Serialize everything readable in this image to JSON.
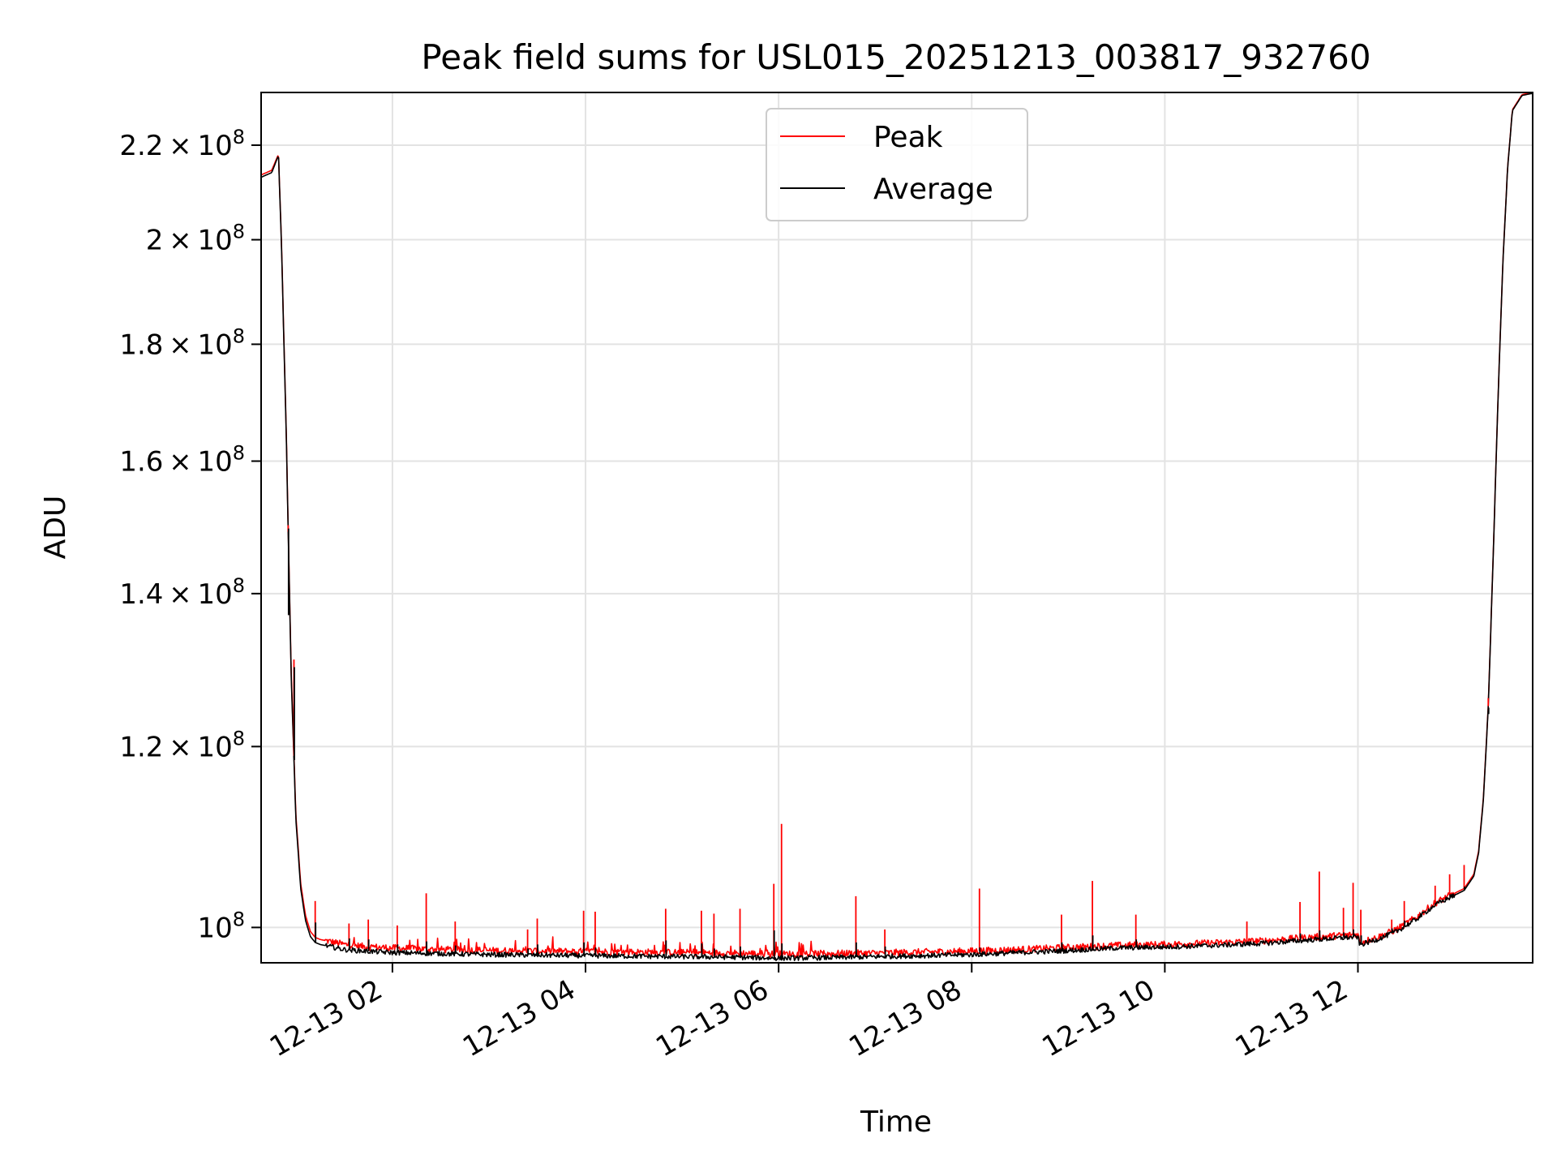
{
  "chart_data": {
    "type": "line",
    "title": "Peak field sums for USL015_20251213_003817_932760",
    "xlabel": "Time",
    "ylabel": "ADU",
    "y_scale": "log",
    "grid": true,
    "legend_position": "upper center",
    "x_unit": "hours since 2025-12-13 00:00",
    "xlim": [
      0.64,
      13.81
    ],
    "ylim": [
      96500000,
      232000000
    ],
    "x_ticks": [
      {
        "value": 2,
        "label": "12-13 02"
      },
      {
        "value": 4,
        "label": "12-13 04"
      },
      {
        "value": 6,
        "label": "12-13 06"
      },
      {
        "value": 8,
        "label": "12-13 08"
      },
      {
        "value": 10,
        "label": "12-13 10"
      },
      {
        "value": 12,
        "label": "12-13 12"
      }
    ],
    "y_ticks": [
      {
        "value": 100000000,
        "mantissa": "",
        "exponent": "8",
        "label": "10^8"
      },
      {
        "value": 120000000,
        "mantissa": "1.2",
        "exponent": "8",
        "label": "1.2×10^8"
      },
      {
        "value": 140000000,
        "mantissa": "1.4",
        "exponent": "8",
        "label": "1.4×10^8"
      },
      {
        "value": 160000000,
        "mantissa": "1.6",
        "exponent": "8",
        "label": "1.6×10^8"
      },
      {
        "value": 180000000,
        "mantissa": "1.8",
        "exponent": "8",
        "label": "1.8×10^8"
      },
      {
        "value": 200000000,
        "mantissa": "2",
        "exponent": "8",
        "label": "2×10^8"
      },
      {
        "value": 220000000,
        "mantissa": "2.2",
        "exponent": "8",
        "label": "2.2×10^8"
      }
    ],
    "series": [
      {
        "name": "Peak",
        "color": "#ff0000",
        "x": [
          0.64,
          0.75,
          0.82,
          0.85,
          0.9,
          0.95,
          1.0,
          1.05,
          1.1,
          1.15,
          1.2,
          1.25,
          1.3,
          1.35,
          1.4,
          1.5,
          1.7,
          2.0,
          2.5,
          3.0,
          3.5,
          4.0,
          4.5,
          5.0,
          5.5,
          6.0,
          6.5,
          7.0,
          7.5,
          8.0,
          8.5,
          9.0,
          9.5,
          10.0,
          10.5,
          11.0,
          11.5,
          12.0,
          12.02,
          12.2,
          12.4,
          12.6,
          12.8,
          13.0,
          13.1,
          13.2,
          13.25,
          13.3,
          13.35,
          13.4,
          13.45,
          13.5,
          13.55,
          13.6,
          13.7,
          13.81
        ],
        "y": [
          213500000,
          214500000,
          218000000,
          200000000,
          165000000,
          130000000,
          112000000,
          104500000,
          101200000,
          99600000,
          99000000,
          98800000,
          98700000,
          98600000,
          98500000,
          98300000,
          98100000,
          97950000,
          97800000,
          97700000,
          97650000,
          97600000,
          97550000,
          97500000,
          97450000,
          97350000,
          97400000,
          97450000,
          97550000,
          97650000,
          97800000,
          98000000,
          98200000,
          98300000,
          98450000,
          98650000,
          99000000,
          99300000,
          98500000,
          99000000,
          99800000,
          101000000,
          102500000,
          103500000,
          104000000,
          105500000,
          108000000,
          114000000,
          125000000,
          145000000,
          170000000,
          195000000,
          215000000,
          228000000,
          231500000,
          232000000
        ]
      },
      {
        "name": "Average",
        "color": "#000000",
        "x": [
          0.64,
          0.75,
          0.82,
          0.85,
          0.9,
          0.95,
          1.0,
          1.05,
          1.1,
          1.15,
          1.2,
          1.25,
          1.3,
          1.35,
          1.4,
          1.5,
          1.7,
          2.0,
          2.5,
          3.0,
          3.5,
          4.0,
          4.5,
          5.0,
          5.5,
          6.0,
          6.5,
          7.0,
          7.5,
          8.0,
          8.5,
          9.0,
          9.5,
          10.0,
          10.5,
          11.0,
          11.5,
          12.0,
          12.02,
          12.2,
          12.4,
          12.6,
          12.8,
          13.0,
          13.1,
          13.2,
          13.25,
          13.3,
          13.35,
          13.4,
          13.45,
          13.5,
          13.55,
          13.6,
          13.7,
          13.81
        ],
        "y": [
          213000000,
          214000000,
          217800000,
          199500000,
          164500000,
          129500000,
          111500000,
          104000000,
          100700000,
          99100000,
          98500000,
          98300000,
          98200000,
          98100000,
          98000000,
          97800000,
          97650000,
          97500000,
          97400000,
          97300000,
          97250000,
          97200000,
          97150000,
          97100000,
          97050000,
          96950000,
          97000000,
          97100000,
          97200000,
          97300000,
          97500000,
          97700000,
          97950000,
          98050000,
          98200000,
          98400000,
          98750000,
          99050000,
          98250000,
          98800000,
          99600000,
          100800000,
          102300000,
          103300000,
          103800000,
          105300000,
          107800000,
          113800000,
          124800000,
          144800000,
          169800000,
          194800000,
          214800000,
          227800000,
          231300000,
          231800000
        ]
      }
    ],
    "spikes": [
      {
        "x": 0.98,
        "peak": 131000000,
        "avg": 130000000
      },
      {
        "x": 0.92,
        "peak": 149000000,
        "avg": 137000000
      },
      {
        "x": 1.2,
        "peak": 102700000,
        "avg": 100500000
      },
      {
        "x": 1.55,
        "peak": 100400000,
        "avg": 98900000
      },
      {
        "x": 1.75,
        "peak": 100800000,
        "avg": 98800000
      },
      {
        "x": 2.05,
        "peak": 100200000,
        "avg": 98300000
      },
      {
        "x": 2.35,
        "peak": 103500000,
        "avg": 98600000
      },
      {
        "x": 2.65,
        "peak": 100600000,
        "avg": 98200000
      },
      {
        "x": 3.4,
        "peak": 99800000,
        "avg": 97900000
      },
      {
        "x": 3.5,
        "peak": 100900000,
        "avg": 98300000
      },
      {
        "x": 3.98,
        "peak": 101700000,
        "avg": 98500000
      },
      {
        "x": 4.1,
        "peak": 101600000,
        "avg": 98000000
      },
      {
        "x": 4.83,
        "peak": 101900000,
        "avg": 98700000
      },
      {
        "x": 5.2,
        "peak": 101700000,
        "avg": 98400000
      },
      {
        "x": 5.33,
        "peak": 101400000,
        "avg": 97900000
      },
      {
        "x": 5.6,
        "peak": 101900000,
        "avg": 98100000
      },
      {
        "x": 5.95,
        "peak": 104500000,
        "avg": 99700000
      },
      {
        "x": 6.03,
        "peak": 111000000,
        "avg": 98400000
      },
      {
        "x": 6.8,
        "peak": 103200000,
        "avg": 98500000
      },
      {
        "x": 7.1,
        "peak": 99800000,
        "avg": 98100000
      },
      {
        "x": 8.08,
        "peak": 104000000,
        "avg": 98000000
      },
      {
        "x": 8.93,
        "peak": 101300000,
        "avg": 98500000
      },
      {
        "x": 9.25,
        "peak": 104800000,
        "avg": 99200000
      },
      {
        "x": 9.7,
        "peak": 101300000,
        "avg": 98800000
      },
      {
        "x": 10.85,
        "peak": 100600000,
        "avg": 98600000
      },
      {
        "x": 11.4,
        "peak": 102600000,
        "avg": 99400000
      },
      {
        "x": 11.6,
        "peak": 105800000,
        "avg": 99700000
      },
      {
        "x": 11.85,
        "peak": 102000000,
        "avg": 99500000
      },
      {
        "x": 11.95,
        "peak": 104600000,
        "avg": 99800000
      },
      {
        "x": 12.03,
        "peak": 101800000,
        "avg": 99200000
      },
      {
        "x": 12.35,
        "peak": 100800000,
        "avg": 99900000
      },
      {
        "x": 12.48,
        "peak": 102700000,
        "avg": 100700000
      },
      {
        "x": 12.8,
        "peak": 104300000,
        "avg": 102400000
      },
      {
        "x": 12.95,
        "peak": 105500000,
        "avg": 103400000
      },
      {
        "x": 13.1,
        "peak": 106500000,
        "avg": 104200000
      },
      {
        "x": 13.35,
        "peak": 126000000,
        "avg": 124000000
      }
    ]
  }
}
